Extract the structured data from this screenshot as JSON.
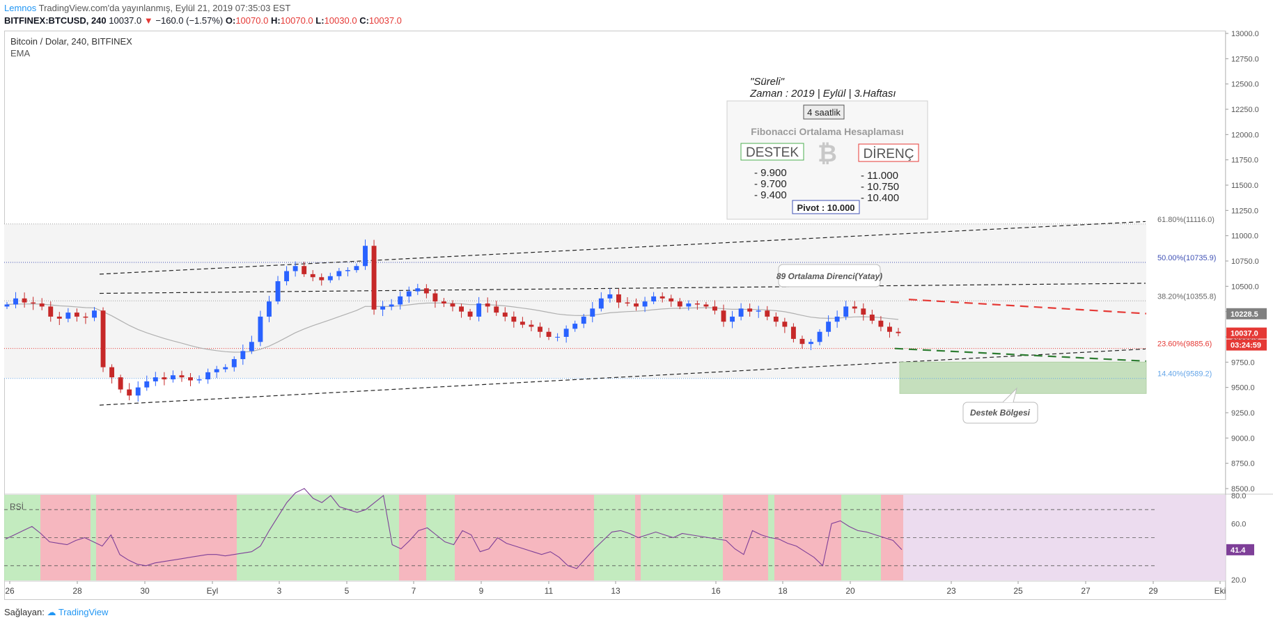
{
  "header": {
    "publisher": "Lemnos",
    "published_text": "TradingView.com'da yayınlanmış, Eylül 21, 2019 07:35:03 EST",
    "symbol": "BITFINEX:BTCUSD, 240",
    "last": "10037.0",
    "change_arrow": "▼",
    "change": "−160.0 (−1.57%)",
    "o_label": "O:",
    "o_value": "10070.0",
    "h_label": "H:",
    "h_value": "10070.0",
    "l_label": "L:",
    "l_value": "10030.0",
    "c_label": "C:",
    "c_value": "10037.0"
  },
  "pane": {
    "title": "Bitcoin / Dolar, 240, BITFINEX",
    "indicator": "EMA",
    "rsi_label": "RSİ"
  },
  "info_box": {
    "line1": "\"Süreli\"",
    "line2": "Zaman : 2019 | Eylül | 3.Haftası",
    "timeframe": "4 saatlik",
    "heading": "Fibonacci Ortalama Hesaplaması",
    "support_label": "DESTEK",
    "resistance_label": "DİRENÇ",
    "support_levels": [
      "- 9.900",
      "- 9.700",
      "- 9.400"
    ],
    "resistance_levels": [
      "- 11.000",
      "- 10.750",
      "- 10.400"
    ],
    "pivot": "Pivot : 10.000",
    "coin_glyph": "₿"
  },
  "callouts": {
    "resistance_note": "89 Ortalama Direnci(Yatay)",
    "support_zone": "Destek Bölgesi"
  },
  "footer": {
    "provider_label": "Sağlayan:",
    "provider_name": "TradingView"
  },
  "colors": {
    "up": "#2962ff",
    "down": "#c62828",
    "resistance": "#e53935",
    "support": "#2e7d32",
    "rsi_line": "#7e3f98",
    "price_tag": "#e53935"
  },
  "chart_data": [
    {
      "type": "candlestick",
      "x": [
        "26",
        "28",
        "30",
        "Eyl",
        "3",
        "5",
        "7",
        "9",
        "11",
        "13",
        "16",
        "18",
        "20",
        "23",
        "25",
        "27",
        "29",
        "Eki"
      ],
      "y_ticks": [
        13000.0,
        12750.0,
        12500.0,
        12250.0,
        12000.0,
        11750.0,
        11500.0,
        11250.0,
        11000.0,
        10750.0,
        10500.0,
        10250.0,
        10000.0,
        9750.0,
        9500.0,
        9250.0,
        9000.0,
        8750.0,
        8500.0
      ],
      "ylim": [
        8500,
        13000
      ],
      "price_markers": [
        {
          "label": "10228.5",
          "value": 10228.5
        },
        {
          "label": "10037.0",
          "value": 10037.0
        },
        {
          "label": "03:24:59",
          "value": 9885
        }
      ],
      "fib_levels": [
        {
          "label": "61.80%(11116.0)",
          "value": 11116.0
        },
        {
          "label": "50.00%(10735.9)",
          "value": 10735.9
        },
        {
          "label": "38.20%(10355.8)",
          "value": 10355.8
        },
        {
          "label": "23.60%(9885.6)",
          "value": 9885.6
        },
        {
          "label": "14.40%(9589.2)",
          "value": 9589.2
        }
      ],
      "annotations": [
        "89 Ortalama Direnci(Yatay)",
        "Destek Bölgesi"
      ],
      "close_series_approx": [
        10320,
        10380,
        10340,
        10330,
        10300,
        10200,
        10180,
        10240,
        10200,
        10190,
        10260,
        9700,
        9600,
        9480,
        9420,
        9500,
        9560,
        9600,
        9580,
        9620,
        9600,
        9570,
        9580,
        9650,
        9680,
        9700,
        9780,
        9860,
        9950,
        10200,
        10350,
        10550,
        10650,
        10700,
        10620,
        10590,
        10560,
        10600,
        10650,
        10660,
        10700,
        10900,
        10270,
        10300,
        10320,
        10400,
        10450,
        10480,
        10430,
        10350,
        10330,
        10300,
        10250,
        10200,
        10330,
        10300,
        10240,
        10200,
        10150,
        10120,
        10100,
        10050,
        10000,
        10000,
        10080,
        10130,
        10200,
        10280,
        10380,
        10420,
        10340,
        10330,
        10300,
        10350,
        10400,
        10380,
        10350,
        10300,
        10330,
        10320,
        10300,
        10260,
        10150,
        10200,
        10280,
        10250,
        10260,
        10200,
        10150,
        10100,
        9980,
        9930,
        9950,
        10050,
        10150,
        10200,
        10300,
        10280,
        10220,
        10160,
        10100,
        10050,
        10037
      ]
    },
    {
      "type": "line",
      "title": "RSİ",
      "y_ticks": [
        80.0,
        60.0,
        41.4,
        20.0
      ],
      "ylim": [
        20,
        80
      ],
      "bands": [
        30,
        50,
        70
      ],
      "last_value": "41.4",
      "values_approx": [
        49,
        52,
        55,
        58,
        53,
        47,
        46,
        45,
        48,
        50,
        47,
        44,
        52,
        38,
        34,
        31,
        30,
        32,
        33,
        34,
        35,
        36,
        37,
        38,
        38,
        37,
        38,
        39,
        40,
        44,
        55,
        65,
        75,
        82,
        85,
        78,
        75,
        80,
        72,
        70,
        68,
        70,
        75,
        80,
        45,
        42,
        48,
        55,
        57,
        52,
        47,
        45,
        55,
        52,
        40,
        42,
        50,
        46,
        44,
        42,
        40,
        38,
        40,
        36,
        30,
        28,
        35,
        42,
        48,
        54,
        55,
        53,
        50,
        52,
        54,
        52,
        50,
        53,
        52,
        51,
        50,
        49,
        48,
        42,
        38,
        55,
        52,
        50,
        49,
        46,
        44,
        40,
        36,
        30,
        60,
        62,
        58,
        55,
        54,
        52,
        50,
        48,
        41.4
      ]
    }
  ]
}
